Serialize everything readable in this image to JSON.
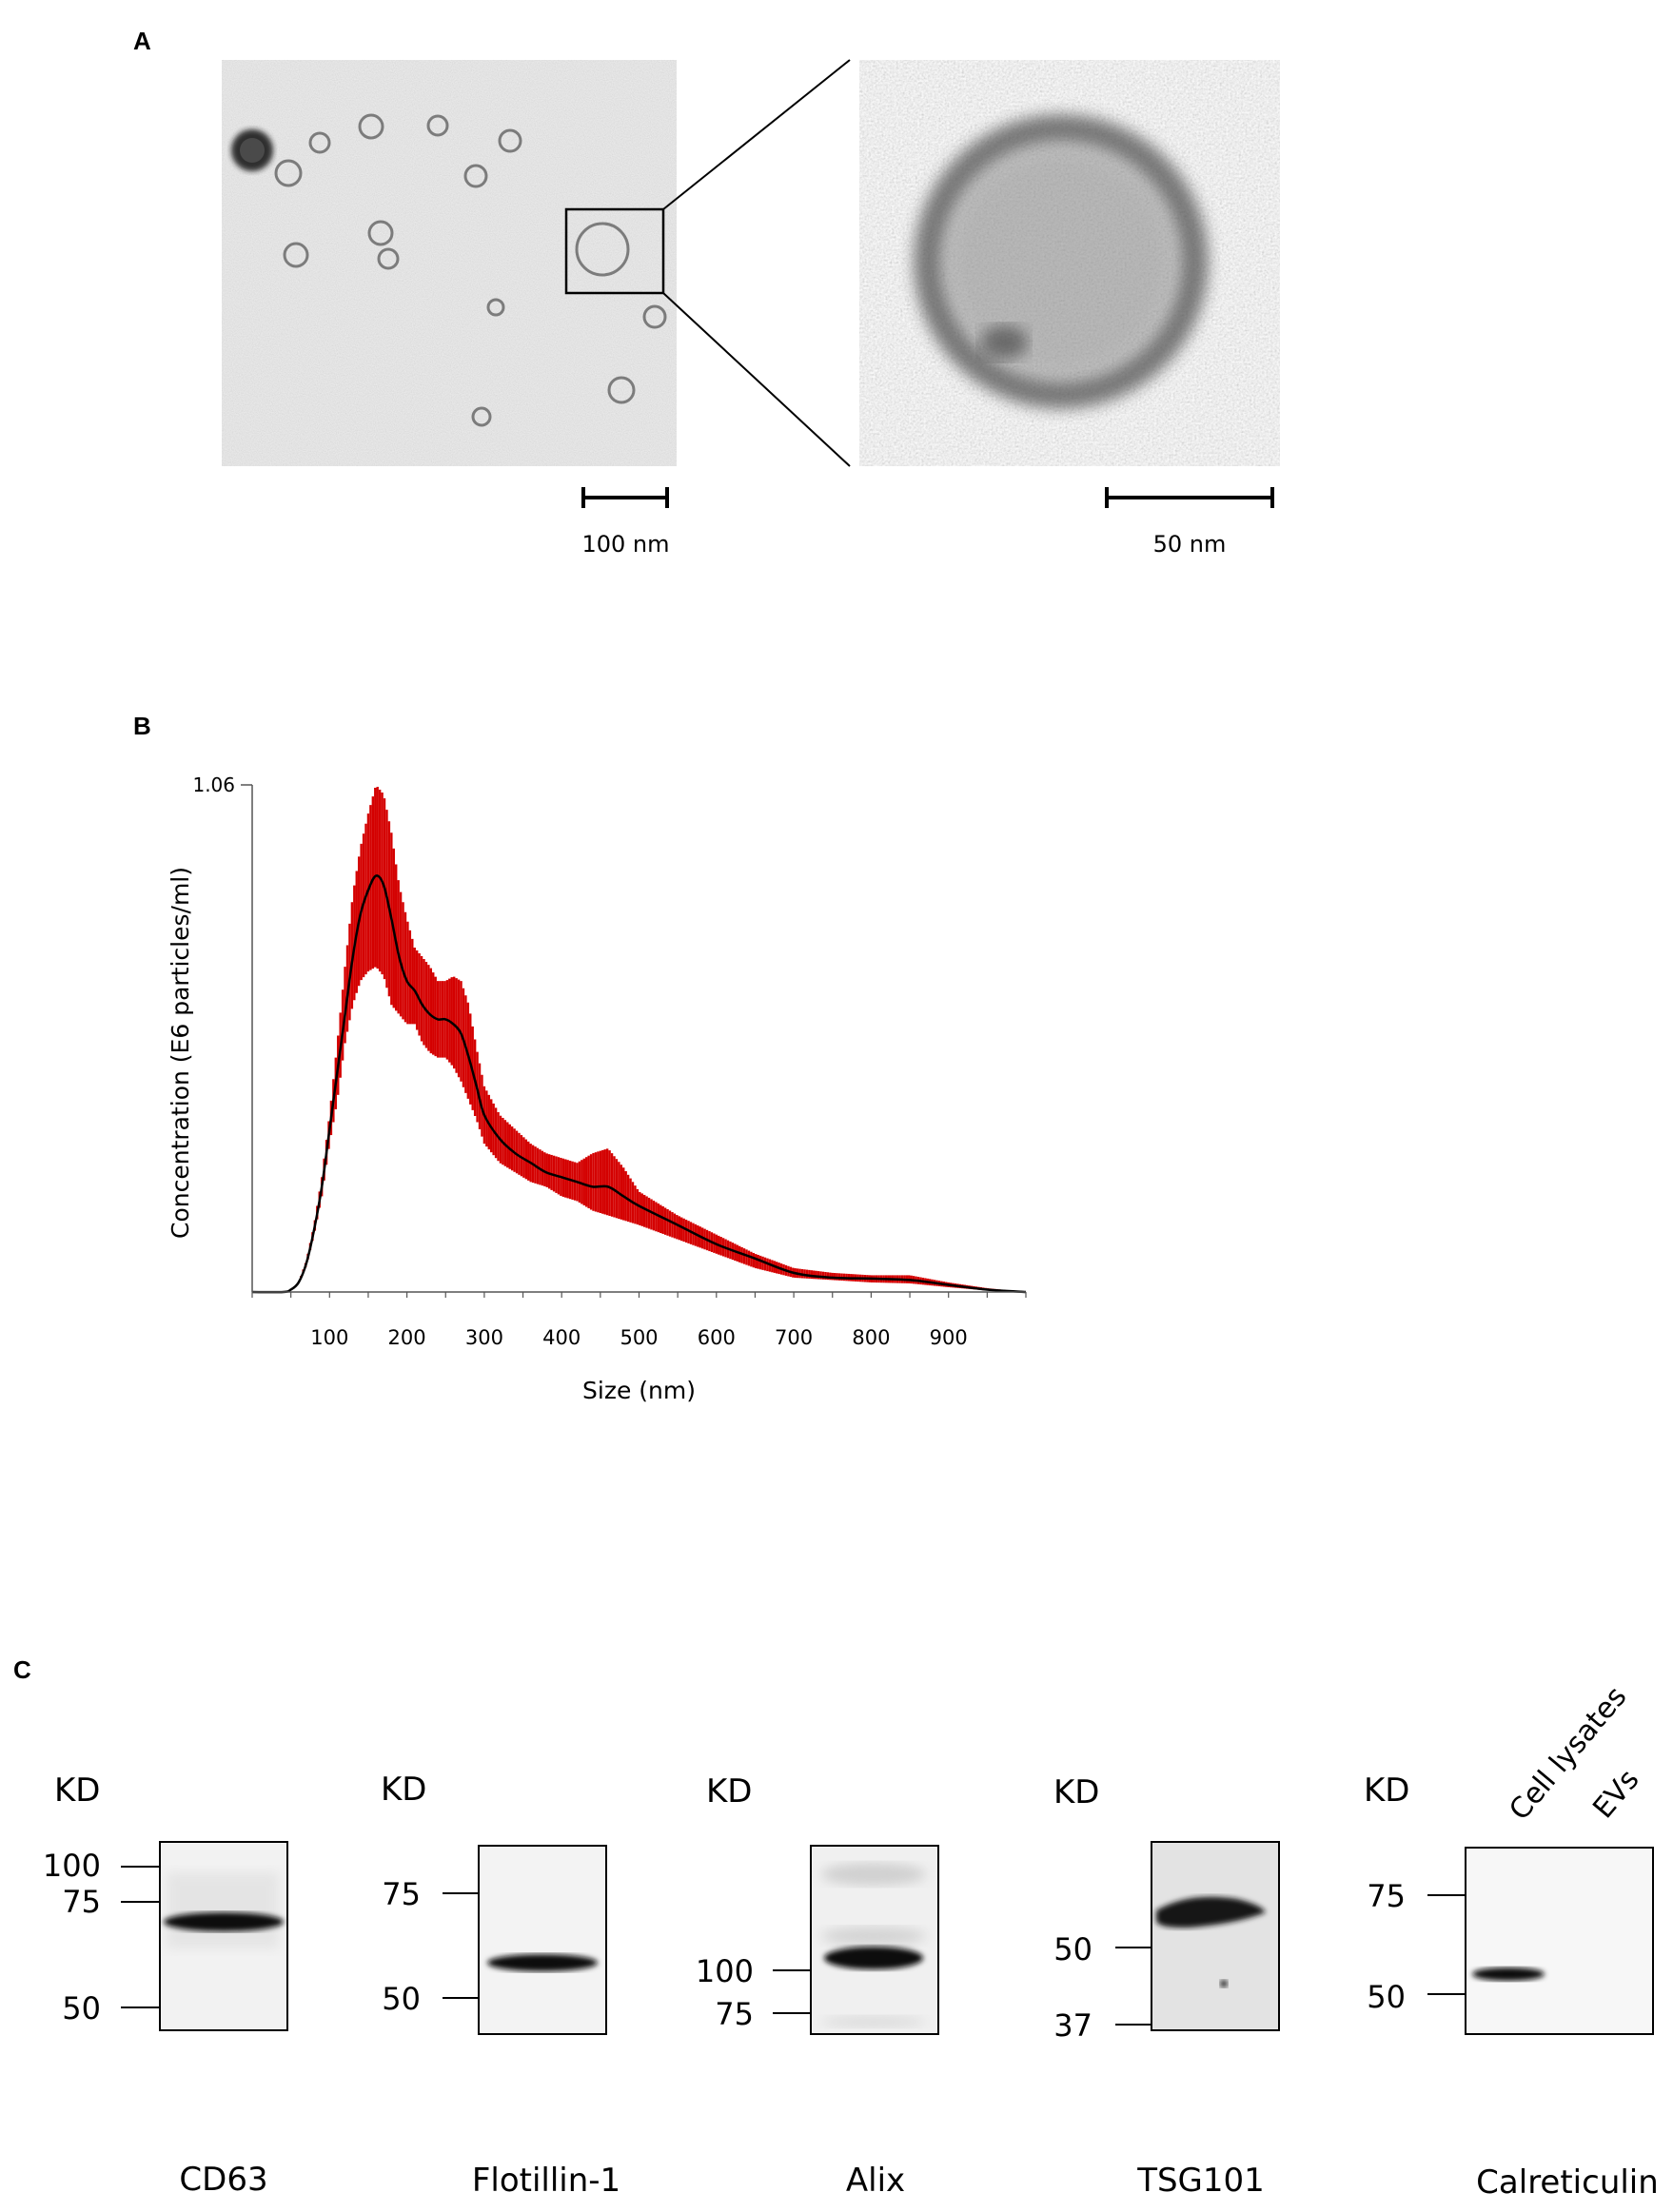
{
  "panels": {
    "a": {
      "letter": "A",
      "scale_bar_left": "100 nm",
      "scale_bar_right": "50 nm"
    },
    "b": {
      "letter": "B"
    },
    "c": {
      "letter": "C"
    }
  },
  "chart_data": {
    "type": "line",
    "ylabel": "Concentration (E6 particles/ml)",
    "xlabel": "Size (nm)",
    "ytick_labels": [
      "1.06"
    ],
    "xticks": [
      100,
      200,
      300,
      400,
      500,
      600,
      700,
      800,
      900
    ],
    "xlim": [
      0,
      1000
    ],
    "ylim": [
      0,
      1.06
    ],
    "series": [
      {
        "x": [
          0,
          40,
          50,
          60,
          70,
          80,
          90,
          100,
          110,
          120,
          130,
          140,
          150,
          160,
          170,
          180,
          190,
          200,
          210,
          220,
          230,
          240,
          250,
          260,
          270,
          280,
          290,
          300,
          320,
          340,
          360,
          380,
          400,
          420,
          440,
          460,
          480,
          500,
          550,
          600,
          650,
          700,
          750,
          800,
          850,
          900,
          950,
          1000
        ],
        "mean": [
          0,
          0,
          0.005,
          0.02,
          0.06,
          0.13,
          0.22,
          0.34,
          0.46,
          0.58,
          0.7,
          0.79,
          0.84,
          0.87,
          0.85,
          0.78,
          0.7,
          0.65,
          0.63,
          0.6,
          0.58,
          0.57,
          0.57,
          0.56,
          0.54,
          0.49,
          0.43,
          0.37,
          0.32,
          0.29,
          0.27,
          0.25,
          0.24,
          0.23,
          0.22,
          0.22,
          0.2,
          0.18,
          0.14,
          0.1,
          0.07,
          0.04,
          0.03,
          0.028,
          0.025,
          0.015,
          0.005,
          0
        ],
        "upper": [
          0,
          0,
          0.005,
          0.02,
          0.065,
          0.14,
          0.24,
          0.37,
          0.52,
          0.68,
          0.83,
          0.93,
          1.0,
          1.06,
          1.04,
          0.96,
          0.85,
          0.78,
          0.72,
          0.7,
          0.68,
          0.65,
          0.65,
          0.66,
          0.65,
          0.6,
          0.51,
          0.43,
          0.37,
          0.34,
          0.31,
          0.29,
          0.28,
          0.27,
          0.29,
          0.3,
          0.26,
          0.21,
          0.16,
          0.12,
          0.08,
          0.05,
          0.04,
          0.035,
          0.035,
          0.02,
          0.008,
          0
        ],
        "lower": [
          0,
          0,
          0.005,
          0.02,
          0.055,
          0.12,
          0.2,
          0.31,
          0.4,
          0.52,
          0.6,
          0.65,
          0.67,
          0.68,
          0.66,
          0.6,
          0.58,
          0.56,
          0.56,
          0.52,
          0.5,
          0.49,
          0.49,
          0.47,
          0.44,
          0.4,
          0.36,
          0.31,
          0.27,
          0.25,
          0.23,
          0.22,
          0.2,
          0.19,
          0.17,
          0.16,
          0.15,
          0.14,
          0.11,
          0.08,
          0.05,
          0.03,
          0.025,
          0.02,
          0.018,
          0.01,
          0.003,
          0
        ]
      }
    ],
    "colors": {
      "error_band": "#d40000",
      "mean_line": "#000000"
    }
  },
  "blots": [
    {
      "kd_label": "KD",
      "markers": [
        "100",
        "75",
        "50"
      ],
      "protein": "CD63"
    },
    {
      "kd_label": "KD",
      "markers": [
        "75",
        "50"
      ],
      "protein": "Flotillin-1"
    },
    {
      "kd_label": "KD",
      "markers": [
        "100",
        "75"
      ],
      "protein": "Alix"
    },
    {
      "kd_label": "KD",
      "markers": [
        "50",
        "37"
      ],
      "protein": "TSG101"
    },
    {
      "kd_label": "KD",
      "markers": [
        "75",
        "50"
      ],
      "protein": "Calreticulin",
      "lanes": [
        "Cell lysates",
        "EVs"
      ]
    }
  ]
}
